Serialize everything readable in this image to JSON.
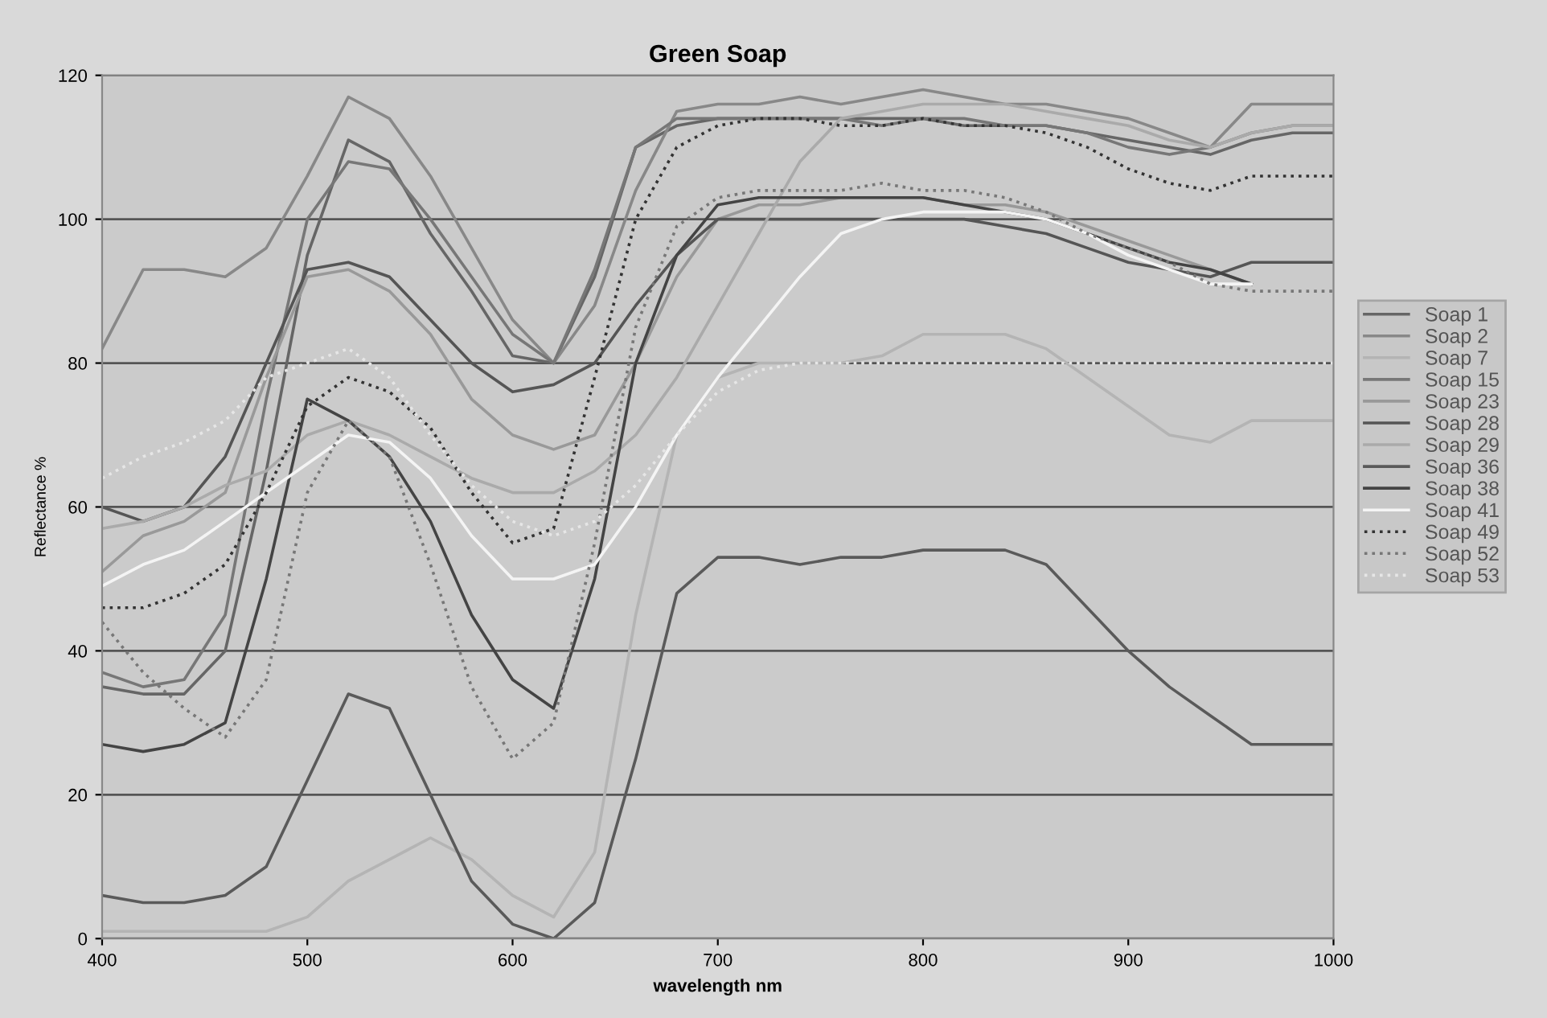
{
  "chart_data": {
    "type": "line",
    "title": "Green Soap",
    "xlabel": "wavelength nm",
    "ylabel": "Reflectance %",
    "x": [
      400,
      420,
      440,
      460,
      480,
      500,
      520,
      540,
      560,
      580,
      600,
      620,
      640,
      660,
      680,
      700,
      720,
      740,
      760,
      780,
      800,
      820,
      840,
      860,
      880,
      900,
      920,
      940,
      960,
      980,
      1000
    ],
    "xlim": [
      400,
      1000
    ],
    "xticks": [
      400,
      500,
      600,
      700,
      800,
      900,
      1000
    ],
    "ylim": [
      0,
      120
    ],
    "yticks": [
      0,
      20,
      40,
      60,
      80,
      100,
      120
    ],
    "grid": "y",
    "legend": "right",
    "marker": "none",
    "series": [
      {
        "name": "Soap 1",
        "color": "#666666",
        "line_style": "solid",
        "values": [
          35,
          34,
          34,
          40,
          65,
          95,
          111,
          108,
          98,
          90,
          81,
          80,
          92,
          110,
          113,
          114,
          114,
          114,
          114,
          114,
          114,
          113,
          113,
          113,
          112,
          111,
          110,
          109,
          111,
          112,
          112
        ]
      },
      {
        "name": "Soap 2",
        "color": "#888888",
        "line_style": "solid",
        "values": [
          82,
          93,
          93,
          92,
          96,
          106,
          117,
          114,
          106,
          96,
          86,
          80,
          88,
          104,
          115,
          116,
          116,
          117,
          116,
          117,
          118,
          117,
          116,
          116,
          115,
          114,
          112,
          110,
          116,
          116,
          116
        ]
      },
      {
        "name": "Soap 7",
        "color": "#b4b4b4",
        "line_style": "solid",
        "values": [
          1,
          1,
          1,
          1,
          1,
          3,
          8,
          11,
          14,
          11,
          6,
          3,
          12,
          45,
          70,
          78,
          80,
          80,
          80,
          81,
          84,
          84,
          84,
          82,
          78,
          74,
          70,
          69,
          72,
          72,
          72
        ]
      },
      {
        "name": "Soap 15",
        "color": "#777777",
        "line_style": "solid",
        "values": [
          37,
          35,
          36,
          45,
          75,
          100,
          108,
          107,
          100,
          92,
          84,
          80,
          93,
          110,
          114,
          114,
          114,
          114,
          114,
          113,
          114,
          114,
          113,
          113,
          112,
          110,
          109,
          110,
          112,
          113,
          113
        ]
      },
      {
        "name": "Soap 23",
        "color": "#999999",
        "line_style": "solid",
        "values": [
          51,
          56,
          58,
          62,
          78,
          92,
          93,
          90,
          84,
          75,
          70,
          68,
          70,
          80,
          92,
          100,
          102,
          102,
          103,
          103,
          103,
          102,
          102,
          101,
          99,
          97,
          95,
          93,
          91,
          null,
          null
        ]
      },
      {
        "name": "Soap 28",
        "color": "#555555",
        "line_style": "solid",
        "values": [
          60,
          58,
          60,
          67,
          80,
          93,
          94,
          92,
          86,
          80,
          76,
          77,
          80,
          88,
          95,
          100,
          100,
          100,
          100,
          100,
          100,
          100,
          99,
          98,
          96,
          94,
          93,
          92,
          94,
          94,
          94
        ]
      },
      {
        "name": "Soap 29",
        "color": "#aaaaaa",
        "line_style": "solid",
        "values": [
          57,
          58,
          60,
          63,
          65,
          70,
          72,
          70,
          67,
          64,
          62,
          62,
          65,
          70,
          78,
          88,
          98,
          108,
          114,
          115,
          116,
          116,
          116,
          115,
          114,
          113,
          111,
          110,
          112,
          113,
          113
        ]
      },
      {
        "name": "Soap 36",
        "color": "#5a5a5a",
        "line_style": "solid",
        "values": [
          6,
          5,
          5,
          6,
          10,
          22,
          34,
          32,
          20,
          8,
          2,
          0,
          5,
          25,
          48,
          53,
          53,
          52,
          53,
          53,
          54,
          54,
          54,
          52,
          46,
          40,
          35,
          31,
          27,
          27,
          27
        ]
      },
      {
        "name": "Soap 38",
        "color": "#444444",
        "line_style": "solid",
        "values": [
          27,
          26,
          27,
          30,
          50,
          75,
          72,
          67,
          58,
          45,
          36,
          32,
          50,
          80,
          95,
          102,
          103,
          103,
          103,
          103,
          103,
          102,
          101,
          100,
          98,
          96,
          94,
          93,
          91,
          null,
          null
        ]
      },
      {
        "name": "Soap 41",
        "color": "#f4f4f4",
        "line_style": "solid",
        "values": [
          49,
          52,
          54,
          58,
          62,
          66,
          70,
          69,
          64,
          56,
          50,
          50,
          52,
          60,
          70,
          78,
          85,
          92,
          98,
          100,
          101,
          101,
          101,
          100,
          98,
          95,
          93,
          91,
          91,
          null,
          null
        ]
      },
      {
        "name": "Soap 49",
        "color": "#333333",
        "line_style": "dotted",
        "values": [
          46,
          46,
          48,
          52,
          62,
          74,
          78,
          76,
          71,
          62,
          55,
          57,
          78,
          100,
          110,
          113,
          114,
          114,
          113,
          113,
          114,
          113,
          113,
          112,
          110,
          107,
          105,
          104,
          106,
          106,
          106
        ]
      },
      {
        "name": "Soap 52",
        "color": "#777777",
        "line_style": "dotted",
        "values": [
          44,
          37,
          32,
          28,
          36,
          62,
          72,
          67,
          52,
          35,
          25,
          30,
          55,
          85,
          99,
          103,
          104,
          104,
          104,
          105,
          104,
          104,
          103,
          101,
          98,
          96,
          94,
          91,
          90,
          90,
          90
        ]
      },
      {
        "name": "Soap 53",
        "color": "#e6e6e6",
        "line_style": "dotted",
        "values": [
          64,
          67,
          69,
          72,
          78,
          80,
          82,
          78,
          70,
          63,
          58,
          56,
          58,
          63,
          70,
          76,
          79,
          80,
          80,
          80,
          80,
          80,
          80,
          80,
          80,
          80,
          80,
          80,
          80,
          80,
          80
        ]
      }
    ]
  }
}
